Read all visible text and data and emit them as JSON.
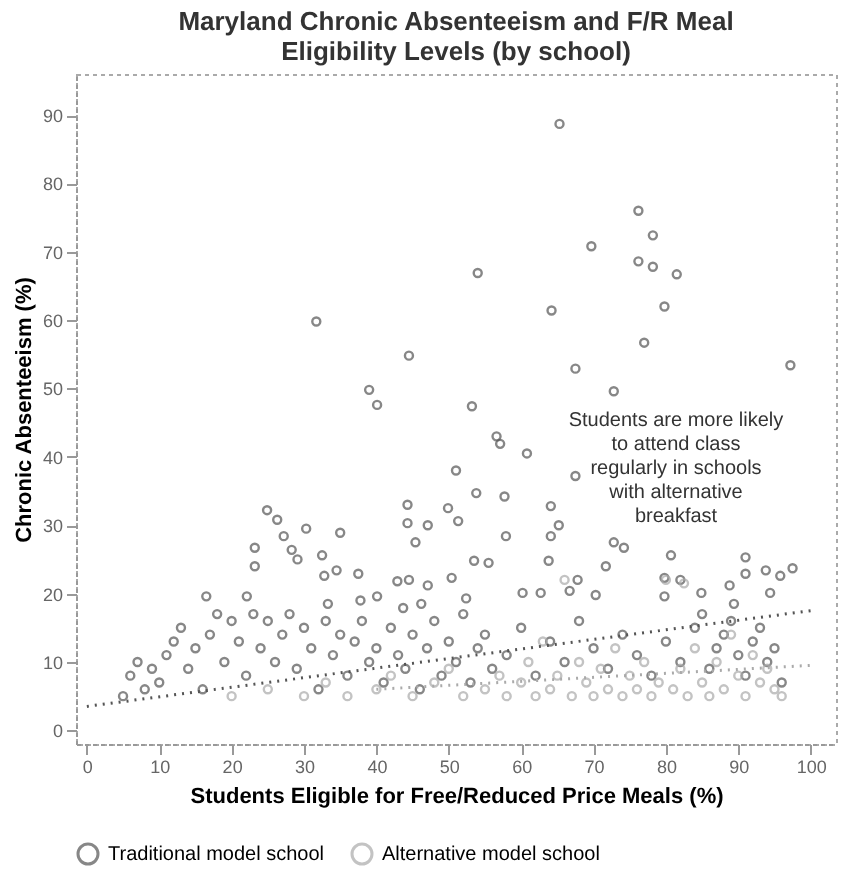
{
  "chart_data": {
    "type": "scatter",
    "title": "Maryland Chronic Absenteeism and F/R Meal Eligibility Levels (by school)",
    "xlabel": "Students Eligible for Free/Reduced Price Meals (%)",
    "ylabel": "Chronic Absenteeism (%)",
    "xlim": [
      -1.5,
      103.5
    ],
    "ylim": [
      -2,
      96
    ],
    "xticks": [
      0,
      10,
      20,
      30,
      40,
      50,
      60,
      70,
      80,
      90,
      100
    ],
    "yticks": [
      0,
      10,
      20,
      30,
      40,
      50,
      60,
      70,
      80,
      90
    ],
    "grid": false,
    "legend": "bottom",
    "annotations": [
      "Students are more likely to attend class regularly in schools with alternative breakfast"
    ],
    "series": [
      {
        "name": "Traditional model school",
        "color": "#555555",
        "marker": "circle",
        "x": [
          65.3,
          76.2,
          78.2,
          69.7,
          76.2,
          78.2,
          81.5,
          54,
          79.8,
          64.2,
          31.7,
          77,
          44.5,
          97.2,
          67.5,
          39,
          72.8,
          40.1,
          53.2,
          56.6,
          57.1,
          60.8,
          51,
          67.5,
          24.9,
          26.3,
          27.2,
          30.3,
          23.2,
          28.3,
          29.1,
          35,
          32.5,
          44.3,
          44.3,
          47.1,
          45.4,
          49.9,
          51.3,
          53.8,
          57.7,
          64.1,
          65.2,
          64.1,
          57.9,
          63.8,
          53.5,
          55.5,
          23.2,
          72.8,
          74.2,
          71.7,
          80.7,
          91,
          97.5,
          32.8,
          34.5,
          37.5,
          42.9,
          44.5,
          47.1,
          50.4,
          67.8,
          79.8,
          82,
          88.8,
          91,
          93.8,
          95.8,
          16.5,
          22.1,
          33.3,
          40.1,
          37.8,
          43.7,
          46.2,
          52.4,
          60.2,
          62.7,
          66.7,
          70.3,
          79.8,
          84.9,
          89.4,
          94.4,
          5,
          6,
          7,
          8,
          9,
          10,
          11,
          12,
          13,
          14,
          15,
          16,
          17,
          18,
          19,
          20,
          21,
          22,
          23,
          24,
          25,
          26,
          27,
          28,
          29,
          30,
          31,
          32,
          33,
          34,
          35,
          36,
          37,
          38,
          39,
          40,
          41,
          42,
          43,
          44,
          45,
          46,
          47,
          48,
          49,
          50,
          51,
          52,
          53,
          54,
          55,
          56,
          58,
          60,
          62,
          64,
          66,
          68,
          70,
          72,
          74,
          76,
          78,
          80,
          82,
          84,
          85,
          86,
          87,
          88,
          89,
          90,
          91,
          92,
          93,
          94,
          95,
          96
        ],
        "values": [
          88.7,
          76,
          72.4,
          70.8,
          68.6,
          67.8,
          66.7,
          66.9,
          62,
          61.4,
          59.8,
          56.7,
          54.8,
          53.4,
          52.9,
          49.8,
          49.6,
          47.6,
          47.4,
          43,
          41.9,
          40.5,
          38,
          37.2,
          32.2,
          30.8,
          28.4,
          29.5,
          26.7,
          26.4,
          25,
          28.9,
          25.6,
          33,
          30.3,
          30,
          27.5,
          32.5,
          30.6,
          34.7,
          34.2,
          32.8,
          30,
          28.4,
          28.4,
          24.8,
          24.8,
          24.5,
          24,
          27.5,
          26.7,
          24,
          25.6,
          25.3,
          23.7,
          22.6,
          23.4,
          22.9,
          21.8,
          22,
          21.2,
          22.3,
          22,
          22.3,
          22,
          21.2,
          22.9,
          23.4,
          22.6,
          19.6,
          19.6,
          18.5,
          19.6,
          19,
          17.9,
          18.5,
          19.3,
          20.1,
          20.1,
          20.4,
          19.8,
          19.6,
          20.1,
          18.5,
          20.1,
          5,
          8,
          10,
          6,
          9,
          7,
          11,
          13,
          15,
          9,
          12,
          6,
          14,
          17,
          10,
          16,
          13,
          8,
          17,
          12,
          16,
          10,
          14,
          17,
          9,
          15,
          12,
          6,
          16,
          11,
          14,
          8,
          13,
          16,
          10,
          12,
          7,
          15,
          11,
          9,
          14,
          6,
          12,
          16,
          8,
          13,
          10,
          17,
          7,
          12,
          14,
          9,
          11,
          15,
          8,
          13,
          10,
          16,
          12,
          9,
          14,
          11,
          8,
          13,
          10,
          15,
          17,
          9,
          12,
          14,
          16,
          11,
          8,
          13,
          15,
          10,
          12,
          7
        ]
      },
      {
        "name": "Alternative model school",
        "color": "#aaaaaa",
        "marker": "circle",
        "x": [
          20,
          25,
          30,
          33,
          36,
          40,
          42,
          45,
          48,
          50,
          52,
          55,
          57,
          58,
          60,
          61,
          62,
          63,
          64,
          65,
          66,
          67,
          68,
          69,
          70,
          71,
          72,
          73,
          74,
          75,
          76,
          77,
          78,
          79,
          80,
          81,
          82,
          83,
          84,
          85,
          86,
          87,
          88,
          89,
          90,
          91,
          92,
          93,
          94,
          95,
          96,
          82.5
        ],
        "values": [
          5,
          6,
          5,
          7,
          5,
          6,
          8,
          5,
          7,
          9,
          5,
          6,
          8,
          5,
          7,
          10,
          5,
          13,
          6,
          8,
          22,
          5,
          10,
          7,
          5,
          9,
          6,
          12,
          5,
          8,
          6,
          10,
          5,
          7,
          22,
          6,
          9,
          5,
          12,
          7,
          5,
          10,
          6,
          14,
          8,
          5,
          11,
          7,
          9,
          6,
          5,
          21.5
        ]
      },
      {
        "type": "line",
        "color": "#555555",
        "marker": "none",
        "line_style": "dotted",
        "x": [
          0,
          100
        ],
        "values": [
          3.5,
          17.5
        ]
      },
      {
        "type": "line",
        "color": "#aaaaaa",
        "marker": "none",
        "line_style": "dotted",
        "x": [
          40,
          100
        ],
        "values": [
          6,
          9.5
        ]
      }
    ]
  }
}
